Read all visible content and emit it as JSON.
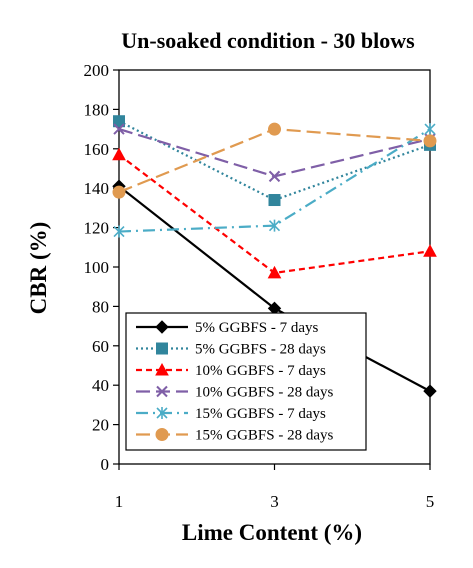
{
  "chart_data": {
    "type": "line",
    "title": "Un-soaked condition  - 30 blows",
    "xlabel": "Lime Content (%)",
    "ylabel": "CBR (%)",
    "x": [
      1,
      3,
      5
    ],
    "xlim": [
      1,
      5
    ],
    "ylim": [
      0,
      200
    ],
    "yticks": [
      0,
      20,
      40,
      60,
      80,
      100,
      120,
      140,
      160,
      180,
      200
    ],
    "xticks": [
      1,
      3,
      5
    ],
    "grid": false,
    "legend_position": "bottom-left",
    "series": [
      {
        "name": "5% GGBFS - 7 days",
        "values": [
          141,
          79,
          37
        ],
        "color": "#000000",
        "dash": "solid",
        "marker": "diamond"
      },
      {
        "name": "5% GGBFS - 28 days",
        "values": [
          174,
          134,
          162
        ],
        "color": "#31859C",
        "dash": "dotted",
        "marker": "square"
      },
      {
        "name": "10% GGBFS - 7 days",
        "values": [
          157,
          97,
          108
        ],
        "color": "#FF0000",
        "dash": "dashed",
        "marker": "triangle"
      },
      {
        "name": "10% GGBFS - 28 days",
        "values": [
          170,
          146,
          165
        ],
        "color": "#7F5FA7",
        "dash": "longdash",
        "marker": "x"
      },
      {
        "name": "15% GGBFS - 7 days",
        "values": [
          118,
          121,
          170
        ],
        "color": "#4BACC6",
        "dash": "dashdot",
        "marker": "star"
      },
      {
        "name": "15% GGBFS - 28 days",
        "values": [
          138,
          170,
          164
        ],
        "color": "#E09A50",
        "dash": "longdash",
        "marker": "circle"
      }
    ]
  }
}
